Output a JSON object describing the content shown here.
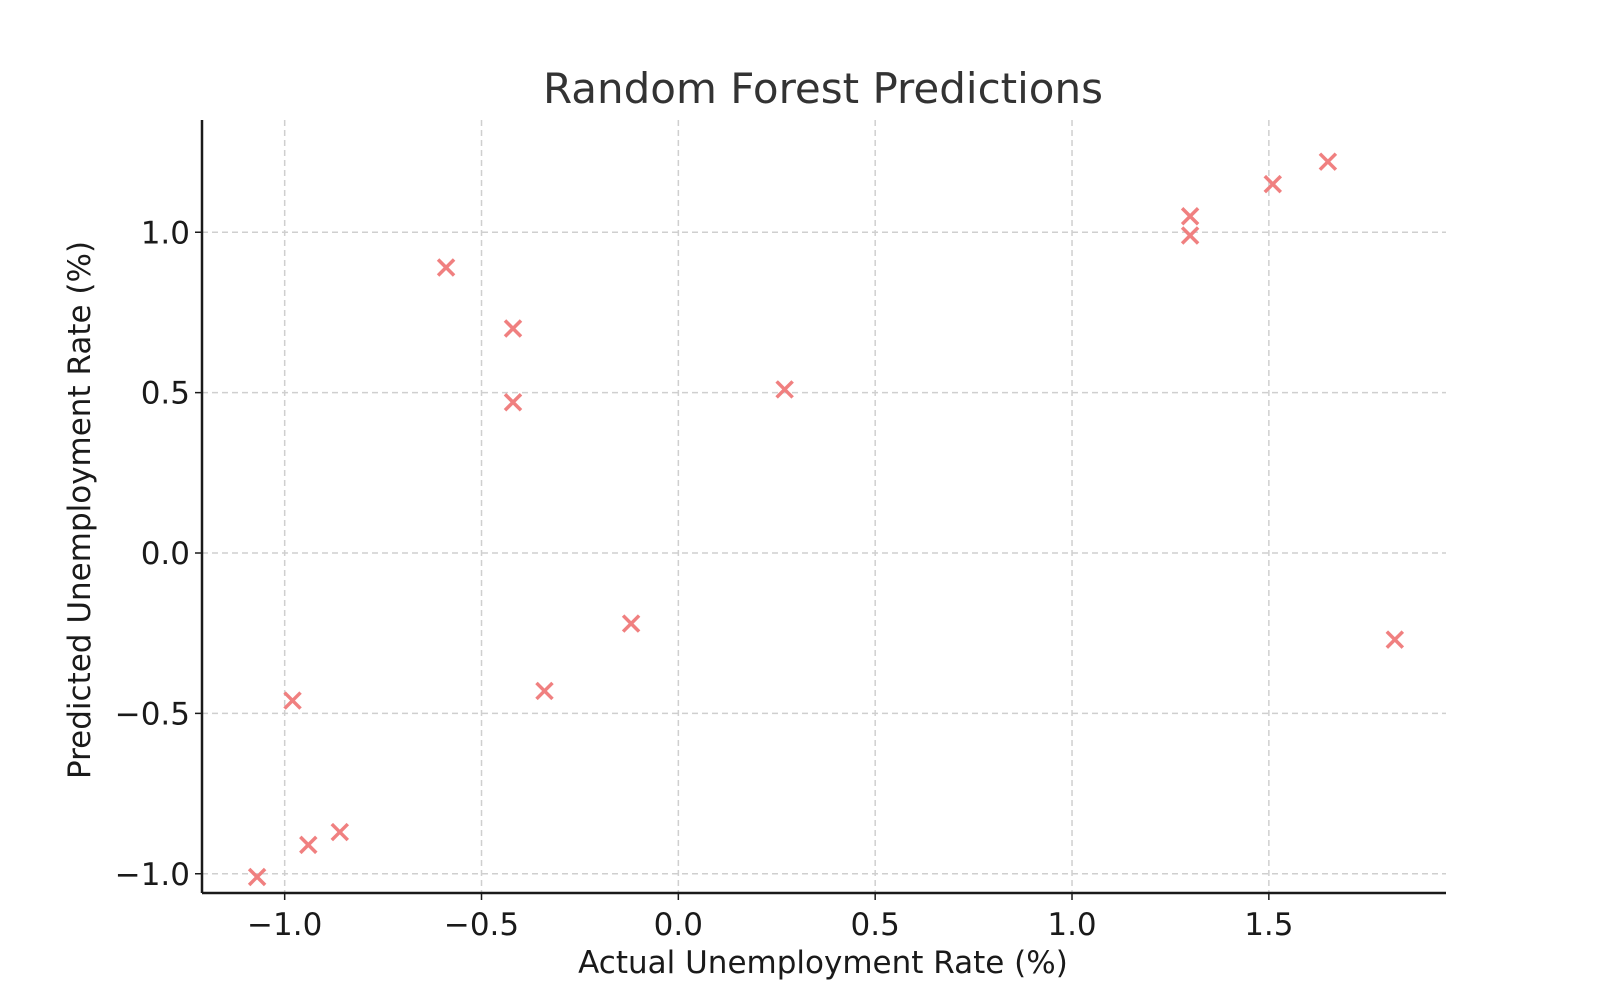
{
  "chart_data": {
    "type": "scatter",
    "title": "Random Forest Predictions",
    "xlabel": "Actual Unemployment Rate (%)",
    "ylabel": "Predicted Unemployment Rate (%)",
    "xlim": [
      -1.21,
      1.95
    ],
    "ylim": [
      -1.06,
      1.35
    ],
    "xticks": [
      -1.0,
      -0.5,
      0.0,
      0.5,
      1.0,
      1.5
    ],
    "xtick_labels": [
      "−1.0",
      "−0.5",
      "0.0",
      "0.5",
      "1.0",
      "1.5"
    ],
    "yticks": [
      -1.0,
      -0.5,
      0.0,
      0.5,
      1.0
    ],
    "ytick_labels": [
      "−1.0",
      "−0.5",
      "0.0",
      "0.5",
      "1.0"
    ],
    "grid": true,
    "marker": "x",
    "color": "#f08080",
    "points": [
      {
        "x": -1.07,
        "y": -1.01
      },
      {
        "x": -0.98,
        "y": -0.46
      },
      {
        "x": -0.94,
        "y": -0.91
      },
      {
        "x": -0.86,
        "y": -0.87
      },
      {
        "x": -0.59,
        "y": 0.89
      },
      {
        "x": -0.42,
        "y": 0.7
      },
      {
        "x": -0.42,
        "y": 0.47
      },
      {
        "x": -0.34,
        "y": -0.43
      },
      {
        "x": -0.12,
        "y": -0.22
      },
      {
        "x": 0.27,
        "y": 0.51
      },
      {
        "x": 1.3,
        "y": 1.05
      },
      {
        "x": 1.3,
        "y": 0.99
      },
      {
        "x": 1.51,
        "y": 1.15
      },
      {
        "x": 1.65,
        "y": 1.22
      },
      {
        "x": 1.82,
        "y": -0.27
      }
    ]
  }
}
